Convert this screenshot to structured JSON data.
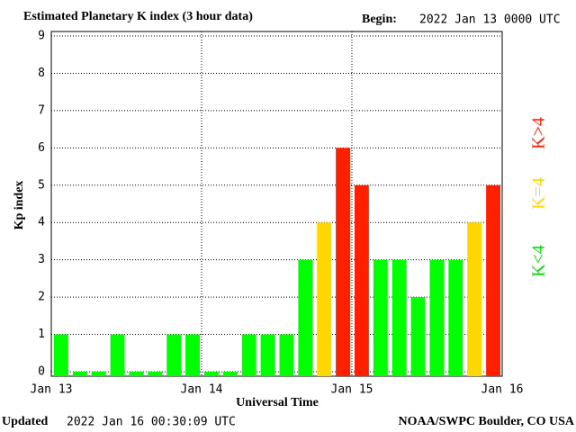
{
  "chart_data": {
    "type": "bar",
    "title": "Estimated Planetary K index (3 hour data)",
    "begin_label": "Begin:",
    "begin": "2022 Jan 13 0000 UTC",
    "ylabel": "Kp index",
    "xlabel": "Universal Time",
    "updated_label": "Updated",
    "updated": "2022 Jan 16 00:30:09 UTC",
    "source": "NOAA/SWPC Boulder, CO USA",
    "values": [
      1,
      0,
      0,
      1,
      0,
      0,
      1,
      1,
      0,
      0,
      1,
      1,
      1,
      3,
      4,
      6,
      5,
      3,
      3,
      2,
      3,
      3,
      4,
      5
    ],
    "colors": [
      "#00ff00",
      "#00ff00",
      "#00ff00",
      "#00ff00",
      "#00ff00",
      "#00ff00",
      "#00ff00",
      "#00ff00",
      "#00ff00",
      "#00ff00",
      "#00ff00",
      "#00ff00",
      "#00ff00",
      "#00ff00",
      "#ffd700",
      "#ff2000",
      "#ff2000",
      "#00ff00",
      "#00ff00",
      "#00ff00",
      "#00ff00",
      "#00ff00",
      "#ffd700",
      "#ff2000"
    ],
    "xticks": [
      "Jan 13",
      "Jan 14",
      "Jan 15",
      "Jan 16"
    ],
    "ylim": [
      0,
      9
    ],
    "yticks": [
      0,
      1,
      2,
      3,
      4,
      5,
      6,
      7,
      8,
      9
    ],
    "grid": true,
    "legend": [
      {
        "name": "K<4",
        "color": "#00e000"
      },
      {
        "name": "K=4",
        "color": "#ffd700"
      },
      {
        "name": "K>4",
        "color": "#ff2000"
      }
    ]
  }
}
